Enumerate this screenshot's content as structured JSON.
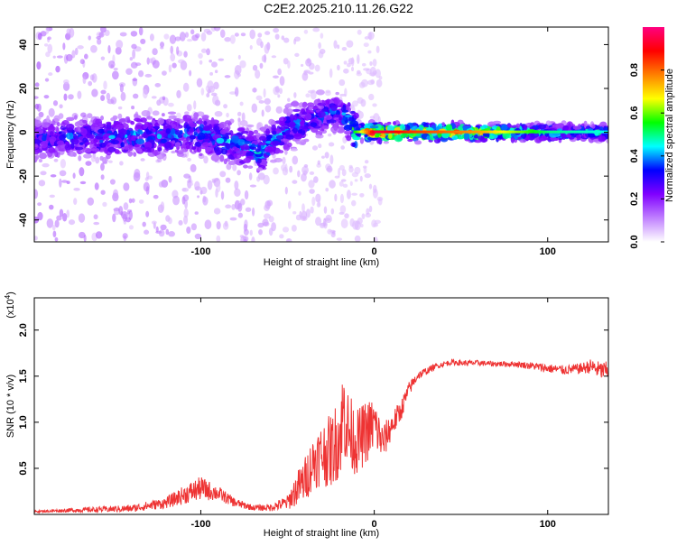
{
  "title": "C2E2.2025.210.11.26.G22",
  "chart_data": [
    {
      "type": "heatmap",
      "xlabel": "Height of straight line (km)",
      "ylabel": "Frequency (Hz)",
      "xlim": [
        -196,
        135
      ],
      "ylim": [
        -50,
        48
      ],
      "x_ticks": [
        -100,
        0,
        100
      ],
      "y_ticks": [
        -40,
        -20,
        0,
        20,
        40
      ],
      "colorbar": {
        "label": "Normalized spectral amplitude",
        "range": [
          0,
          1
        ],
        "ticks": [
          0.0,
          0.2,
          0.4,
          0.6,
          0.8
        ],
        "colors": [
          "#ffffff",
          "#c080ff",
          "#8000ff",
          "#0000ff",
          "#00ffff",
          "#00ff00",
          "#ffff00",
          "#ff8000",
          "#ff0000",
          "#ff0080"
        ]
      },
      "trend": [
        {
          "x": -196,
          "freq_center": -3,
          "amplitude": 0.35
        },
        {
          "x": -150,
          "freq_center": -2,
          "amplitude": 0.4
        },
        {
          "x": -100,
          "freq_center": -1,
          "amplitude": 0.4
        },
        {
          "x": -65,
          "freq_center": -9,
          "amplitude": 0.45
        },
        {
          "x": -50,
          "freq_center": 2,
          "amplitude": 0.4
        },
        {
          "x": -20,
          "freq_center": 10,
          "amplitude": 0.35
        },
        {
          "x": -10,
          "freq_center": 0,
          "amplitude": 0.6
        },
        {
          "x": 0,
          "freq_center": 0,
          "amplitude": 0.95
        },
        {
          "x": 20,
          "freq_center": 0,
          "amplitude": 0.85
        },
        {
          "x": 60,
          "freq_center": 0,
          "amplitude": 0.75
        },
        {
          "x": 100,
          "freq_center": 0,
          "amplitude": 0.5
        },
        {
          "x": 135,
          "freq_center": 0,
          "amplitude": 0.45
        }
      ]
    },
    {
      "type": "line",
      "xlabel": "Height of straight line (km)",
      "ylabel": "SNR (10 * v/v)",
      "multiplier_label": "(x10",
      "multiplier_exp": "4",
      "xlim": [
        -196,
        135
      ],
      "ylim": [
        0,
        2.35
      ],
      "x_ticks": [
        -100,
        0,
        100
      ],
      "y_ticks": [
        0.5,
        1.0,
        1.5,
        2.0
      ],
      "series": [
        {
          "color": "#ee3333",
          "x": [
            -196,
            -180,
            -160,
            -140,
            -120,
            -110,
            -100,
            -90,
            -80,
            -70,
            -60,
            -50,
            -45,
            -40,
            -35,
            -30,
            -25,
            -20,
            -17,
            -15,
            -10,
            -5,
            0,
            5,
            10,
            15,
            20,
            25,
            30,
            35,
            40,
            45,
            50,
            60,
            70,
            80,
            90,
            100,
            110,
            120,
            125,
            130,
            135
          ],
          "y": [
            0.03,
            0.04,
            0.05,
            0.06,
            0.12,
            0.2,
            0.27,
            0.22,
            0.12,
            0.07,
            0.07,
            0.12,
            0.25,
            0.35,
            0.55,
            0.62,
            0.65,
            0.8,
            1.1,
            0.85,
            0.75,
            0.85,
            0.95,
            0.75,
            0.95,
            1.1,
            1.35,
            1.5,
            1.55,
            1.6,
            1.63,
            1.65,
            1.64,
            1.64,
            1.63,
            1.63,
            1.61,
            1.58,
            1.56,
            1.58,
            1.6,
            1.55,
            1.55
          ],
          "spread": [
            0.01,
            0.02,
            0.03,
            0.04,
            0.06,
            0.1,
            0.13,
            0.08,
            0.05,
            0.03,
            0.04,
            0.08,
            0.18,
            0.25,
            0.3,
            0.35,
            0.4,
            0.45,
            0.6,
            0.45,
            0.35,
            0.35,
            0.3,
            0.2,
            0.15,
            0.12,
            0.08,
            0.05,
            0.04,
            0.03,
            0.03,
            0.03,
            0.03,
            0.03,
            0.03,
            0.03,
            0.04,
            0.05,
            0.05,
            0.06,
            0.08,
            0.1,
            0.1
          ]
        }
      ]
    }
  ]
}
